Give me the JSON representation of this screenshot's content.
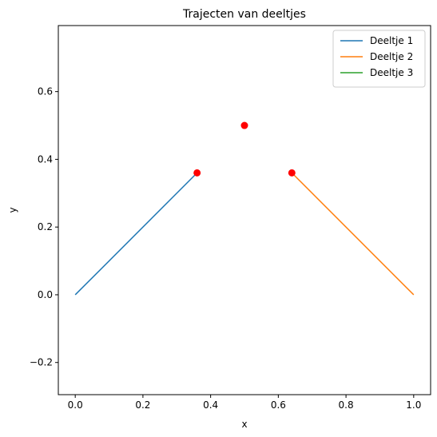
{
  "chart_data": {
    "type": "line",
    "title": "Trajecten van deeltjes",
    "xlabel": "x",
    "ylabel": "y",
    "xlim": [
      -0.05,
      1.05
    ],
    "ylim": [
      -0.295,
      0.795
    ],
    "xticks": [
      0.0,
      0.2,
      0.4,
      0.6,
      0.8,
      1.0
    ],
    "xtick_labels": [
      "0.0",
      "0.2",
      "0.4",
      "0.6",
      "0.8",
      "1.0"
    ],
    "yticks": [
      -0.2,
      0.0,
      0.2,
      0.4,
      0.6
    ],
    "ytick_labels": [
      "−0.2",
      "0.0",
      "0.2",
      "0.4",
      "0.6"
    ],
    "grid": false,
    "legend_position": "top-right",
    "series": [
      {
        "name": "Deeltje 1",
        "color": "#1f77b4",
        "x": [
          0.0,
          0.36
        ],
        "y": [
          0.0,
          0.36
        ]
      },
      {
        "name": "Deeltje 2",
        "color": "#ff7f0e",
        "x": [
          1.0,
          0.64
        ],
        "y": [
          0.0,
          0.36
        ]
      },
      {
        "name": "Deeltje 3",
        "color": "#2ca02c",
        "x": [
          0.5,
          0.5
        ],
        "y": [
          0.5,
          0.5
        ]
      }
    ],
    "points": {
      "color": "#ff0000",
      "x": [
        0.36,
        0.64,
        0.5
      ],
      "y": [
        0.36,
        0.36,
        0.5
      ]
    }
  }
}
